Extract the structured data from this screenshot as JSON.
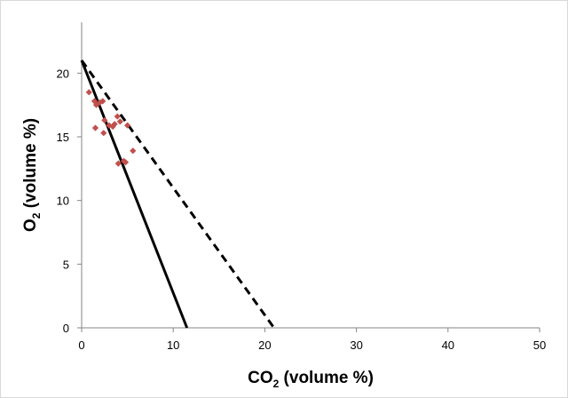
{
  "chart_data": {
    "type": "scatter",
    "title": "",
    "xlabel": {
      "main": "CO",
      "sub": "2",
      "rest": " (volume %)"
    },
    "ylabel": {
      "main": "O",
      "sub": "2",
      "rest": "  (volume %)"
    },
    "xlim": [
      0,
      50
    ],
    "ylim": [
      0,
      24
    ],
    "x_ticks": [
      "0",
      "10",
      "20",
      "30",
      "40",
      "50"
    ],
    "y_ticks": [
      "0",
      "5",
      "10",
      "15",
      "20"
    ],
    "x_tick_values": [
      0,
      10,
      20,
      30,
      40,
      50
    ],
    "y_tick_values": [
      0,
      5,
      10,
      15,
      20
    ],
    "grid": false,
    "legend": "none",
    "points": {
      "color": "#C0504D",
      "marker": "diamond",
      "x": [
        0.8,
        1.4,
        1.6,
        2.0,
        2.3,
        1.5,
        2.5,
        2.4,
        3.0,
        3.4,
        3.6,
        3.9,
        4.2,
        4.0,
        4.6,
        4.8,
        5.0,
        5.6
      ],
      "y": [
        18.5,
        17.8,
        17.5,
        17.7,
        17.8,
        15.7,
        16.3,
        15.3,
        15.9,
        15.8,
        16.0,
        16.6,
        16.2,
        12.9,
        13.1,
        13.0,
        15.9,
        13.9
      ]
    },
    "lines": [
      {
        "style": "solid",
        "color": "#000000",
        "x": [
          0,
          11.5
        ],
        "y": [
          21,
          0
        ]
      },
      {
        "style": "dashed",
        "color": "#000000",
        "x": [
          0,
          21
        ],
        "y": [
          21,
          0
        ]
      }
    ]
  }
}
